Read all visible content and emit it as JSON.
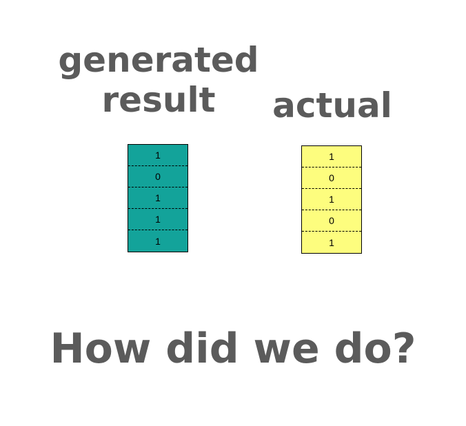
{
  "generated": {
    "title_lines": [
      "generated",
      "result"
    ],
    "color": "#13a39a",
    "values": [
      "1",
      "0",
      "1",
      "1",
      "1"
    ]
  },
  "actual": {
    "title": "actual",
    "color": "#fdfd7e",
    "values": [
      "1",
      "0",
      "1",
      "0",
      "1"
    ]
  },
  "question": "How did we do?",
  "colors": {
    "heading_text": "#5b5b5b",
    "cell_border": "#000000"
  }
}
